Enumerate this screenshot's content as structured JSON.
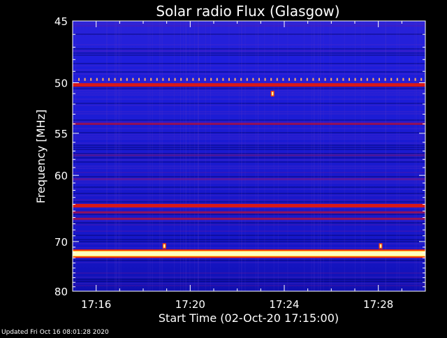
{
  "chart_data": {
    "type": "heatmap",
    "title": "Solar radio Flux (Glasgow)",
    "xlabel": "Start Time (02-Oct-20 17:15:00)",
    "ylabel": "Frequency [MHz]",
    "x_tick_labels": [
      "17:16",
      "17:20",
      "17:24",
      "17:28"
    ],
    "x_ticks_minutes_since_start": [
      1,
      5,
      9,
      13
    ],
    "x_range_minutes_since_start": [
      0,
      15
    ],
    "y_ticks": [
      45,
      50,
      55,
      60,
      70,
      80
    ],
    "y_tick_labels": [
      "45",
      "50",
      "55",
      "60",
      "70",
      "80"
    ],
    "y_range_mhz": [
      45,
      80
    ],
    "y_scale": "reciprocal",
    "colormap": [
      "#000080",
      "#2020e0",
      "#6030d0",
      "#c01030",
      "#ff2000",
      "#ffff60",
      "#ffffff"
    ],
    "background_color": "#1a1ad6",
    "interference_bands_mhz": [
      {
        "freq": 50.2,
        "intensity": "high"
      },
      {
        "freq": 54.0,
        "intensity": "medium"
      },
      {
        "freq": 57.5,
        "intensity": "low"
      },
      {
        "freq": 60.5,
        "intensity": "low"
      },
      {
        "freq": 64.2,
        "intensity": "high"
      },
      {
        "freq": 65.2,
        "intensity": "medium"
      },
      {
        "freq": 66.2,
        "intensity": "medium"
      },
      {
        "freq": 72.2,
        "intensity": "max"
      }
    ],
    "bursts": [
      {
        "minute": 3.9,
        "freq": 70.8
      },
      {
        "minute": 13.1,
        "freq": 70.8
      },
      {
        "minute": 8.5,
        "freq": 51.0
      }
    ]
  },
  "footer": {
    "updated": "Updated Fri Oct 16 08:01:28 2020"
  }
}
